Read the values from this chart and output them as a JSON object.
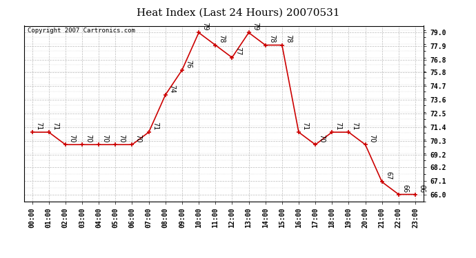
{
  "title": "Heat Index (Last 24 Hours) 20070531",
  "copyright": "Copyright 2007 Cartronics.com",
  "hours": [
    "00:00",
    "01:00",
    "02:00",
    "03:00",
    "04:00",
    "05:00",
    "06:00",
    "07:00",
    "08:00",
    "09:00",
    "10:00",
    "11:00",
    "12:00",
    "13:00",
    "14:00",
    "15:00",
    "16:00",
    "17:00",
    "18:00",
    "19:00",
    "20:00",
    "21:00",
    "22:00",
    "23:00"
  ],
  "values": [
    71,
    71,
    70,
    70,
    70,
    70,
    70,
    71,
    74,
    76,
    79,
    78,
    77,
    79,
    78,
    78,
    71,
    70,
    71,
    71,
    70,
    67,
    66,
    66
  ],
  "line_color": "#cc0000",
  "marker_color": "#cc0000",
  "bg_color": "#ffffff",
  "grid_color": "#bbbbbb",
  "ylim_min": 65.45,
  "ylim_max": 79.55,
  "yticks": [
    66.0,
    67.1,
    68.2,
    69.2,
    70.3,
    71.4,
    72.5,
    73.6,
    74.7,
    75.8,
    76.8,
    77.9,
    79.0
  ],
  "title_fontsize": 11,
  "label_fontsize": 7,
  "copyright_fontsize": 6.5,
  "annotation_fontsize": 7
}
